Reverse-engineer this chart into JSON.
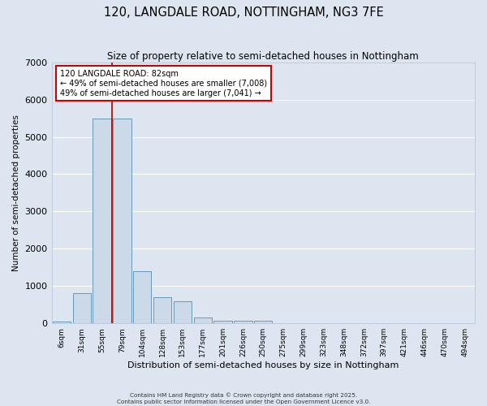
{
  "title": "120, LANGDALE ROAD, NOTTINGHAM, NG3 7FE",
  "subtitle": "Size of property relative to semi-detached houses in Nottingham",
  "xlabel": "Distribution of semi-detached houses by size in Nottingham",
  "ylabel": "Number of semi-detached properties",
  "categories": [
    "6sqm",
    "31sqm",
    "55sqm",
    "79sqm",
    "104sqm",
    "128sqm",
    "153sqm",
    "177sqm",
    "201sqm",
    "226sqm",
    "250sqm",
    "275sqm",
    "299sqm",
    "323sqm",
    "348sqm",
    "372sqm",
    "397sqm",
    "421sqm",
    "446sqm",
    "470sqm",
    "494sqm"
  ],
  "values": [
    50,
    800,
    5500,
    5500,
    1400,
    700,
    600,
    150,
    80,
    70,
    80,
    5,
    5,
    5,
    5,
    5,
    5,
    5,
    5,
    5,
    5
  ],
  "bar_color": "#ccd9e8",
  "bar_edge_color": "#6699bb",
  "bg_color": "#dde6f0",
  "grid_color": "#ffffff",
  "red_line_x": 2.5,
  "annotation_title": "120 LANGDALE ROAD: 82sqm",
  "annotation_line1": "← 49% of semi-detached houses are smaller (7,008)",
  "annotation_line2": "49% of semi-detached houses are larger (7,041) →",
  "annotation_box_color": "#ffffff",
  "annotation_border_color": "#cc0000",
  "ylim": [
    0,
    7000
  ],
  "yticks": [
    0,
    1000,
    2000,
    3000,
    4000,
    5000,
    6000,
    7000
  ],
  "footer1": "Contains HM Land Registry data © Crown copyright and database right 2025.",
  "footer2": "Contains public sector information licensed under the Open Government Licence v3.0."
}
